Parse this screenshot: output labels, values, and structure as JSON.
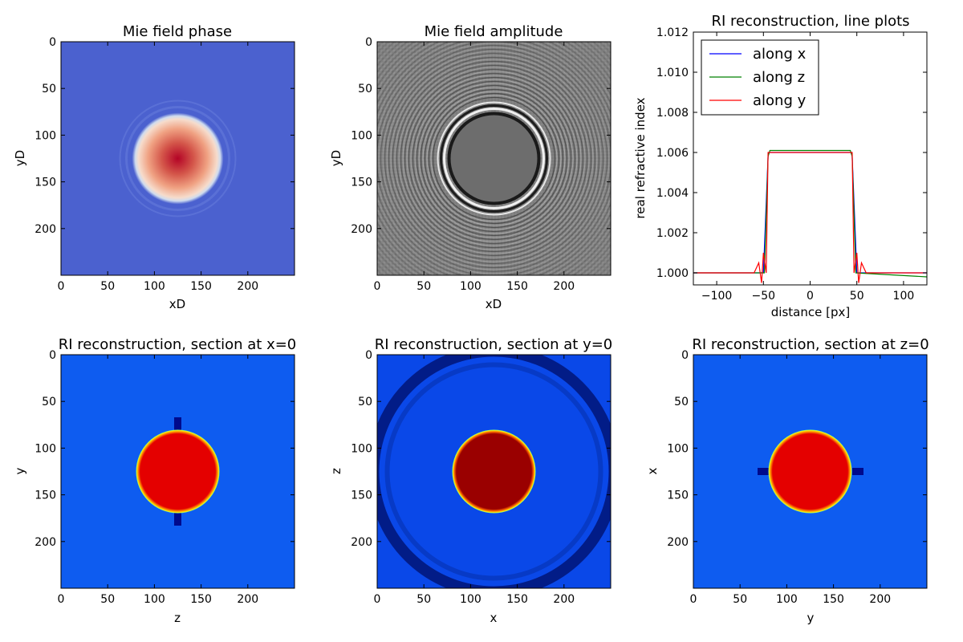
{
  "figure": {
    "background": "#ffffff"
  },
  "panels": [
    {
      "id": "phase",
      "title": "Mie field phase",
      "xlabel": "xD",
      "ylabel": "yD",
      "xticks": [
        "0",
        "50",
        "100",
        "150",
        "200"
      ],
      "yticks": [
        "0",
        "50",
        "100",
        "150",
        "200"
      ]
    },
    {
      "id": "amplitude",
      "title": "Mie field amplitude",
      "xlabel": "xD",
      "ylabel": "yD",
      "xticks": [
        "0",
        "50",
        "100",
        "150",
        "200"
      ],
      "yticks": [
        "0",
        "50",
        "100",
        "150",
        "200"
      ]
    },
    {
      "id": "ri_x0",
      "title": "RI reconstruction, section at x=0",
      "xlabel": "z",
      "ylabel": "y",
      "xticks": [
        "0",
        "50",
        "100",
        "150",
        "200"
      ],
      "yticks": [
        "0",
        "50",
        "100",
        "150",
        "200"
      ]
    },
    {
      "id": "ri_y0",
      "title": "RI reconstruction, section at y=0",
      "xlabel": "x",
      "ylabel": "z",
      "xticks": [
        "0",
        "50",
        "100",
        "150",
        "200"
      ],
      "yticks": [
        "0",
        "50",
        "100",
        "150",
        "200"
      ]
    },
    {
      "id": "ri_z0",
      "title": "RI reconstruction, section at z=0",
      "xlabel": "y",
      "ylabel": "x",
      "xticks": [
        "0",
        "50",
        "100",
        "150",
        "200"
      ],
      "yticks": [
        "0",
        "50",
        "100",
        "150",
        "200"
      ]
    }
  ],
  "line_plot": {
    "title": "RI reconstruction, line plots",
    "xlabel": "distance [px]",
    "ylabel": "real refractive index",
    "xticks": [
      "−100",
      "−50",
      "0",
      "50",
      "100"
    ],
    "yticks": [
      "1.000",
      "1.002",
      "1.004",
      "1.006",
      "1.008",
      "1.010",
      "1.012"
    ],
    "legend": [
      "along x",
      "along z",
      "along y"
    ],
    "colors": [
      "#0000ff",
      "#008000",
      "#ff0000"
    ]
  },
  "chart_data": [
    {
      "type": "heatmap",
      "title": "Mie field phase",
      "xlabel": "xD",
      "ylabel": "yD",
      "xlim": [
        0,
        250
      ],
      "ylim": [
        250,
        0
      ],
      "colormap": "coolwarm",
      "feature": {
        "shape": "disk",
        "center": [
          125,
          125
        ],
        "radius": 47
      }
    },
    {
      "type": "heatmap",
      "title": "Mie field amplitude",
      "xlabel": "xD",
      "ylabel": "yD",
      "xlim": [
        0,
        250
      ],
      "ylim": [
        250,
        0
      ],
      "colormap": "gray",
      "feature": {
        "shape": "ring",
        "center": [
          125,
          125
        ],
        "radius": 57
      }
    },
    {
      "type": "line",
      "title": "RI reconstruction, line plots",
      "xlabel": "distance [px]",
      "ylabel": "real refractive index",
      "xlim": [
        -125,
        125
      ],
      "ylim": [
        0.9994,
        1.012
      ],
      "series": [
        {
          "name": "along x",
          "color": "#0000ff",
          "x": [
            -125,
            -50,
            -45,
            -44,
            44,
            45,
            50,
            125
          ],
          "y": [
            1.0,
            1.0,
            1.0058,
            1.006,
            1.006,
            1.0058,
            1.0,
            1.0
          ]
        },
        {
          "name": "along z",
          "color": "#008000",
          "x": [
            -125,
            -49,
            -45,
            -43,
            43,
            45,
            49,
            125
          ],
          "y": [
            1.0,
            1.0,
            1.0058,
            1.0061,
            1.0061,
            1.0058,
            1.0,
            0.9998
          ]
        },
        {
          "name": "along y",
          "color": "#ff0000",
          "x": [
            -125,
            -60,
            -55,
            -52,
            -50,
            -47,
            -45,
            0,
            45,
            47,
            50,
            52,
            55,
            60,
            125
          ],
          "y": [
            1.0,
            1.0,
            1.0005,
            0.9995,
            1.001,
            1.0,
            1.006,
            1.006,
            1.006,
            1.0,
            1.001,
            0.9995,
            1.0005,
            1.0,
            1.0
          ]
        }
      ]
    },
    {
      "type": "heatmap",
      "title": "RI reconstruction, section at x=0",
      "xlabel": "z",
      "ylabel": "y",
      "xlim": [
        0,
        250
      ],
      "ylim": [
        250,
        0
      ],
      "colormap": "jet",
      "feature": {
        "shape": "disk",
        "center": [
          125,
          125
        ],
        "radius": 44
      }
    },
    {
      "type": "heatmap",
      "title": "RI reconstruction, section at y=0",
      "xlabel": "x",
      "ylabel": "z",
      "xlim": [
        0,
        250
      ],
      "ylim": [
        250,
        0
      ],
      "colormap": "jet",
      "feature": {
        "shape": "disk",
        "center": [
          125,
          125
        ],
        "radius": 44
      }
    },
    {
      "type": "heatmap",
      "title": "RI reconstruction, section at z=0",
      "xlabel": "y",
      "ylabel": "x",
      "xlim": [
        0,
        250
      ],
      "ylim": [
        250,
        0
      ],
      "colormap": "jet",
      "feature": {
        "shape": "disk",
        "center": [
          125,
          125
        ],
        "radius": 44
      }
    }
  ]
}
